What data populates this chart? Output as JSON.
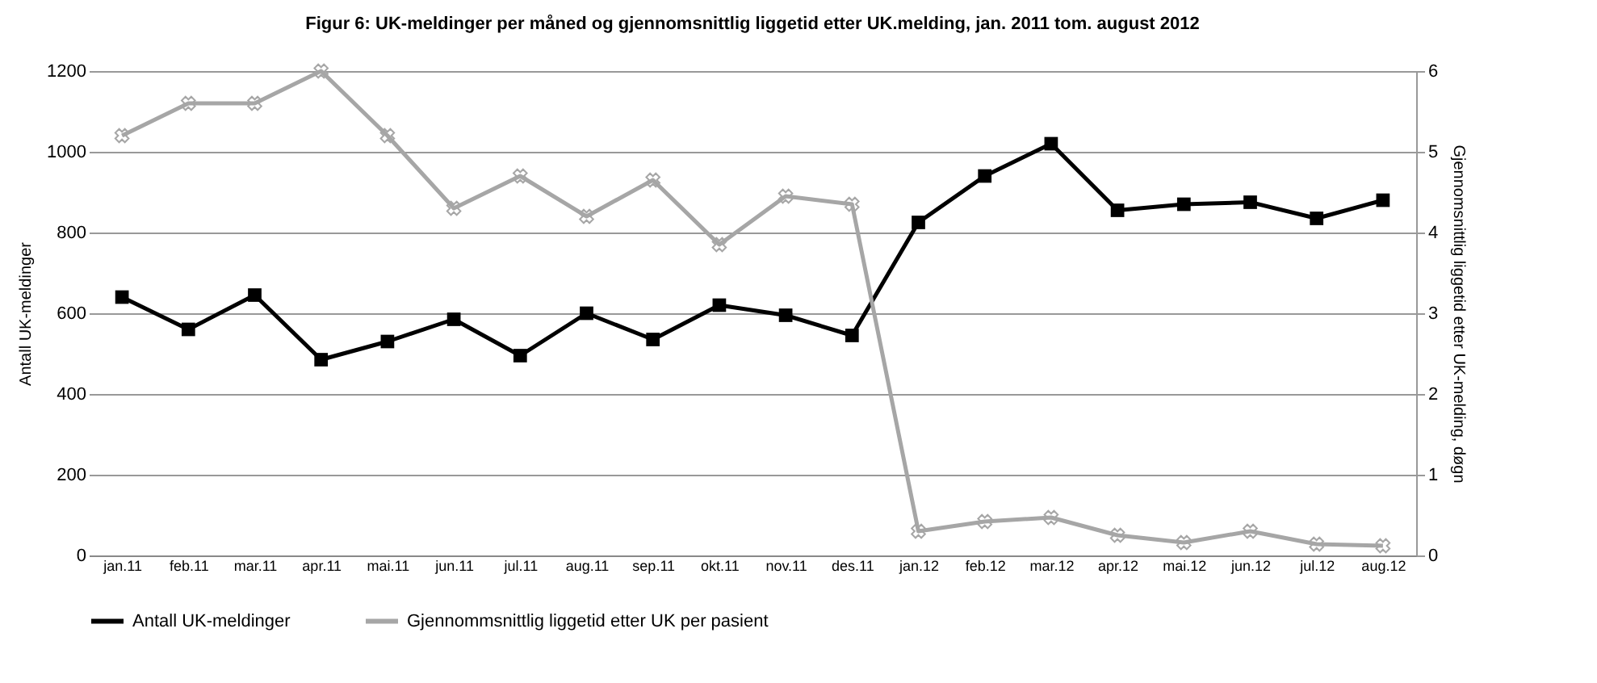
{
  "chart_data": {
    "type": "line",
    "title": "Figur 6: UK-meldinger per måned og gjennomsnittlig liggetid etter UK.melding, jan. 2011 tom. august 2012",
    "categories": [
      "jan.11",
      "feb.11",
      "mar.11",
      "apr.11",
      "mai.11",
      "jun.11",
      "jul.11",
      "aug.11",
      "sep.11",
      "okt.11",
      "nov.11",
      "des.11",
      "jan.12",
      "feb.12",
      "mar.12",
      "apr.12",
      "mai.12",
      "jun.12",
      "jul.12",
      "aug.12"
    ],
    "series": [
      {
        "name": "Antall UK-meldinger",
        "color": "#000000",
        "marker": "square",
        "values": [
          640,
          560,
          645,
          485,
          530,
          585,
          495,
          600,
          535,
          620,
          595,
          545,
          825,
          940,
          1020,
          855,
          870,
          875,
          835,
          880
        ]
      },
      {
        "name": "Gjennommsnittlig liggetid  etter UK per pasient",
        "color": "#a6a6a6",
        "marker": "cross",
        "axis": "y2",
        "values": [
          5.2,
          5.6,
          5.6,
          6.0,
          5.2,
          4.3,
          4.7,
          4.2,
          4.65,
          3.85,
          4.45,
          4.35,
          0.3,
          0.42,
          0.47,
          0.25,
          0.16,
          0.3,
          0.14,
          0.12
        ]
      }
    ],
    "ylabel": "Antall UK-meldinger",
    "y2label": "Gjennomsnittlig liggetid etter UK-melding, døgn",
    "ylim": [
      0,
      1200
    ],
    "yticks": [
      0,
      200,
      400,
      600,
      800,
      1000,
      1200
    ],
    "y2lim": [
      0,
      6
    ],
    "y2ticks": [
      0,
      1,
      2,
      3,
      4,
      5,
      6
    ],
    "grid": "y",
    "legend": "bottom",
    "line_style": "solid"
  }
}
